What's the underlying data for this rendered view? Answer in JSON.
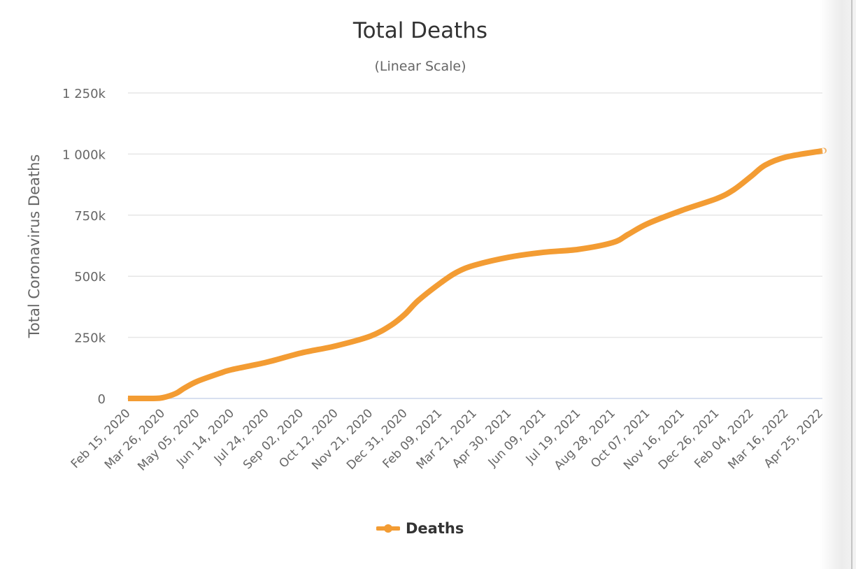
{
  "chart_data": {
    "type": "line",
    "title": "Total Deaths",
    "subtitle": "(Linear Scale)",
    "xlabel": "",
    "ylabel": "Total Coronavirus Deaths",
    "ylim": [
      0,
      1250000
    ],
    "yticks": [
      0,
      250000,
      500000,
      750000,
      1000000,
      1250000
    ],
    "ytick_labels": [
      "0",
      "250k",
      "500k",
      "750k",
      "1 000k",
      "1 250k"
    ],
    "xlim": [
      "2020-02-15",
      "2022-04-27"
    ],
    "xtick_labels": [
      "Feb 15, 2020",
      "Mar 26, 2020",
      "May 05, 2020",
      "Jun 14, 2020",
      "Jul 24, 2020",
      "Sep 02, 2020",
      "Oct 12, 2020",
      "Nov 21, 2020",
      "Dec 31, 2020",
      "Feb 09, 2021",
      "Mar 21, 2021",
      "Apr 30, 2021",
      "Jun 09, 2021",
      "Jul 19, 2021",
      "Aug 28, 2021",
      "Oct 07, 2021",
      "Nov 16, 2021",
      "Dec 26, 2021",
      "Feb 04, 2022",
      "Mar 16, 2022",
      "Apr 25, 2022"
    ],
    "xtick_dates": [
      "2020-02-15",
      "2020-03-26",
      "2020-05-05",
      "2020-06-14",
      "2020-07-24",
      "2020-09-02",
      "2020-10-12",
      "2020-11-21",
      "2020-12-31",
      "2021-02-09",
      "2021-03-21",
      "2021-04-30",
      "2021-06-09",
      "2021-07-19",
      "2021-08-28",
      "2021-10-07",
      "2021-11-16",
      "2021-12-26",
      "2022-02-04",
      "2022-03-16",
      "2022-04-25"
    ],
    "grid": true,
    "legend": "bottom-center",
    "series": [
      {
        "name": "Deaths",
        "color": "#f39c33",
        "x": [
          "2020-02-15",
          "2020-03-15",
          "2020-03-26",
          "2020-04-10",
          "2020-04-20",
          "2020-05-05",
          "2020-05-31",
          "2020-06-14",
          "2020-07-24",
          "2020-09-02",
          "2020-10-12",
          "2020-11-21",
          "2020-12-15",
          "2020-12-31",
          "2021-01-15",
          "2021-02-09",
          "2021-02-28",
          "2021-03-21",
          "2021-04-30",
          "2021-06-09",
          "2021-07-19",
          "2021-08-28",
          "2021-09-15",
          "2021-10-07",
          "2021-11-16",
          "2021-12-26",
          "2022-01-15",
          "2022-02-04",
          "2022-02-20",
          "2022-03-16",
          "2022-04-25",
          "2022-04-27"
        ],
        "y": [
          0,
          100,
          3000,
          20000,
          42000,
          70000,
          103000,
          118000,
          148000,
          186000,
          215000,
          255000,
          300000,
          345000,
          400000,
          470000,
          515000,
          545000,
          578000,
          598000,
          610000,
          638000,
          672000,
          715000,
          770000,
          818000,
          855000,
          910000,
          955000,
          988000,
          1012000,
          1013000
        ]
      }
    ]
  }
}
